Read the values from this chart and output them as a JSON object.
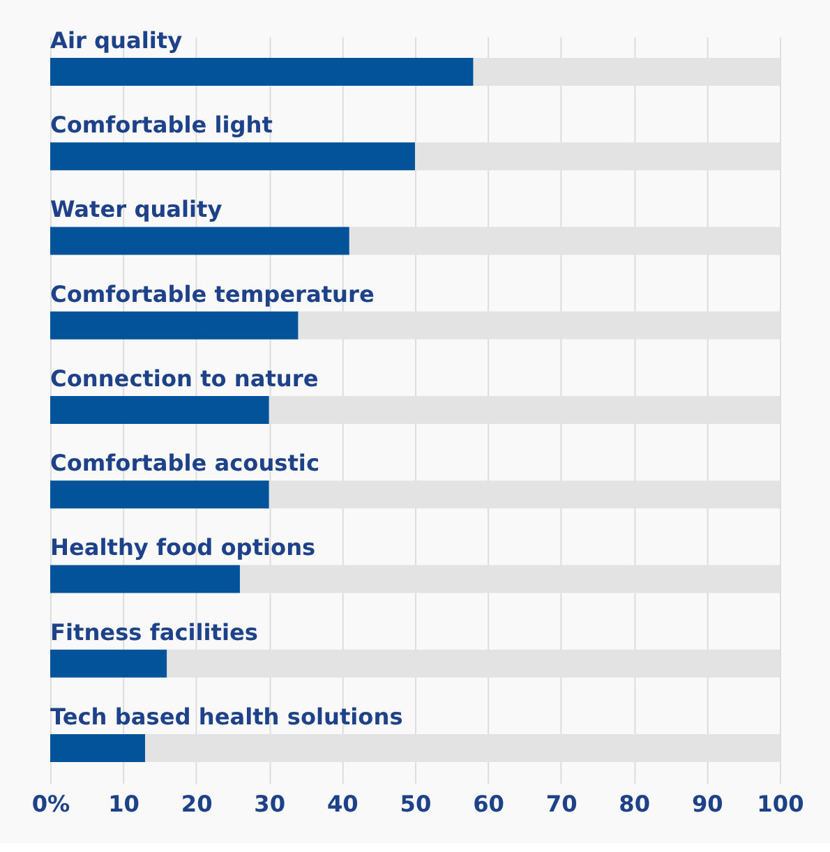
{
  "chart_data": {
    "type": "bar",
    "orientation": "horizontal",
    "stacked": true,
    "categories": [
      "Air quality",
      "Comfortable light",
      "Water quality",
      "Comfortable temperature",
      "Connection to nature",
      "Comfortable acoustic",
      "Healthy food options",
      "Fitness facilities",
      "Tech based health solutions"
    ],
    "series": [
      {
        "color": "#025399",
        "values": [
          58,
          50,
          41,
          34,
          30,
          30,
          26,
          16,
          13
        ]
      },
      {
        "color": "#e3e3e3",
        "values": [
          42,
          50,
          59,
          66,
          70,
          70,
          74,
          84,
          87
        ]
      }
    ],
    "xlim": [
      0,
      100
    ],
    "xticks": [
      {
        "value": 0,
        "label": "0%"
      },
      10,
      20,
      30,
      40,
      50,
      60,
      70,
      80,
      90,
      100
    ],
    "grid": "x",
    "legend": false
  }
}
